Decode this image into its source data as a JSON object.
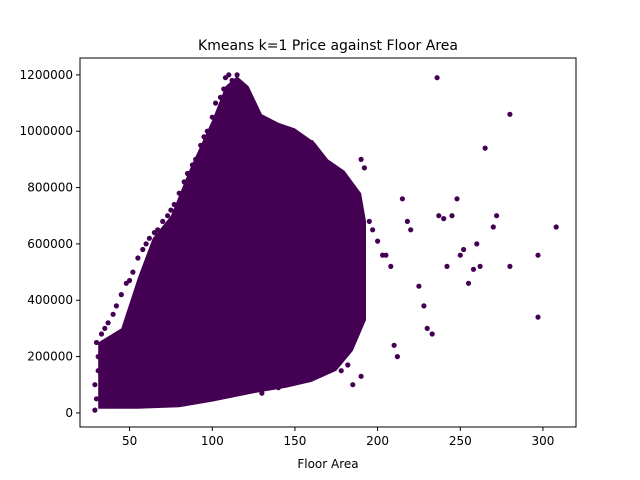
{
  "chart_data": {
    "type": "scatter",
    "title": "Kmeans k=1 Price against Floor Area",
    "xlabel": "Floor Area",
    "ylabel": "",
    "xlim": [
      20,
      320
    ],
    "ylim": [
      -50000,
      1260000
    ],
    "xticks": [
      50,
      100,
      150,
      200,
      250,
      300
    ],
    "yticks": [
      0,
      200000,
      400000,
      600000,
      800000,
      1000000,
      1200000
    ],
    "xtick_labels": [
      "50",
      "100",
      "150",
      "200",
      "250",
      "300"
    ],
    "ytick_labels": [
      "0",
      "200000",
      "400000",
      "600000",
      "800000",
      "1000000",
      "1200000"
    ],
    "marker_color": "#440154",
    "grid": false,
    "legend": "none",
    "dense_region": [
      [
        31,
        20000
      ],
      [
        31,
        250000
      ],
      [
        45,
        300000
      ],
      [
        55,
        480000
      ],
      [
        64,
        620000
      ],
      [
        75,
        700000
      ],
      [
        86,
        860000
      ],
      [
        100,
        1040000
      ],
      [
        108,
        1160000
      ],
      [
        115,
        1195000
      ],
      [
        122,
        1160000
      ],
      [
        130,
        1060000
      ],
      [
        140,
        1030000
      ],
      [
        150,
        1010000
      ],
      [
        162,
        960000
      ],
      [
        170,
        900000
      ],
      [
        180,
        860000
      ],
      [
        190,
        780000
      ],
      [
        193,
        680000
      ],
      [
        193,
        330000
      ],
      [
        185,
        220000
      ],
      [
        175,
        150000
      ],
      [
        160,
        110000
      ],
      [
        145,
        90000
      ],
      [
        125,
        70000
      ],
      [
        100,
        40000
      ],
      [
        80,
        20000
      ],
      [
        55,
        15000
      ],
      [
        31,
        15000
      ]
    ],
    "series": [
      {
        "x": [
          29,
          30,
          31,
          30,
          29,
          31,
          33,
          35,
          37,
          40,
          42,
          45,
          48,
          50,
          52,
          55,
          58,
          60,
          62,
          65,
          67,
          70,
          73,
          75,
          77,
          80,
          83,
          85,
          88,
          90,
          93,
          95,
          97,
          100,
          102,
          105,
          107,
          108,
          110,
          112,
          114,
          115,
          117,
          118,
          120,
          122,
          124,
          125,
          128,
          130,
          133,
          135,
          138,
          140,
          142,
          145,
          148,
          150,
          152,
          155,
          158,
          160,
          163,
          165,
          168,
          170,
          172,
          175,
          178,
          180,
          183,
          185,
          188,
          190,
          192,
          195,
          197,
          200,
          203,
          205,
          208,
          210,
          212,
          215,
          218,
          220,
          225,
          228,
          230,
          233,
          236,
          237,
          240,
          242,
          245,
          248,
          250,
          252,
          255,
          258,
          260,
          262,
          265,
          270,
          272,
          280,
          280,
          297,
          297,
          308,
          185,
          190,
          178,
          182,
          170,
          172,
          160,
          150,
          140,
          130
        ],
        "y": [
          10000,
          50000,
          150000,
          250000,
          100000,
          200000,
          280000,
          300000,
          320000,
          350000,
          380000,
          420000,
          460000,
          470000,
          500000,
          550000,
          580000,
          600000,
          620000,
          640000,
          650000,
          680000,
          700000,
          720000,
          740000,
          780000,
          820000,
          850000,
          880000,
          900000,
          950000,
          980000,
          1000000,
          1050000,
          1100000,
          1120000,
          1150000,
          1190000,
          1200000,
          1180000,
          1170000,
          1200000,
          1160000,
          1140000,
          1120000,
          1100000,
          1080000,
          1050000,
          1060000,
          1040000,
          1020000,
          1030000,
          1000000,
          1010000,
          990000,
          1000000,
          980000,
          990000,
          970000,
          940000,
          920000,
          960000,
          900000,
          880000,
          870000,
          880000,
          860000,
          850000,
          800000,
          780000,
          720000,
          700000,
          680000,
          900000,
          870000,
          680000,
          650000,
          610000,
          560000,
          560000,
          520000,
          240000,
          200000,
          760000,
          680000,
          650000,
          450000,
          380000,
          300000,
          280000,
          1190000,
          700000,
          690000,
          520000,
          700000,
          760000,
          560000,
          580000,
          460000,
          510000,
          600000,
          520000,
          940000,
          660000,
          700000,
          1060000,
          520000,
          560000,
          340000,
          660000,
          100000,
          130000,
          150000,
          170000,
          180000,
          200000,
          130000,
          110000,
          90000,
          70000
        ]
      }
    ]
  }
}
